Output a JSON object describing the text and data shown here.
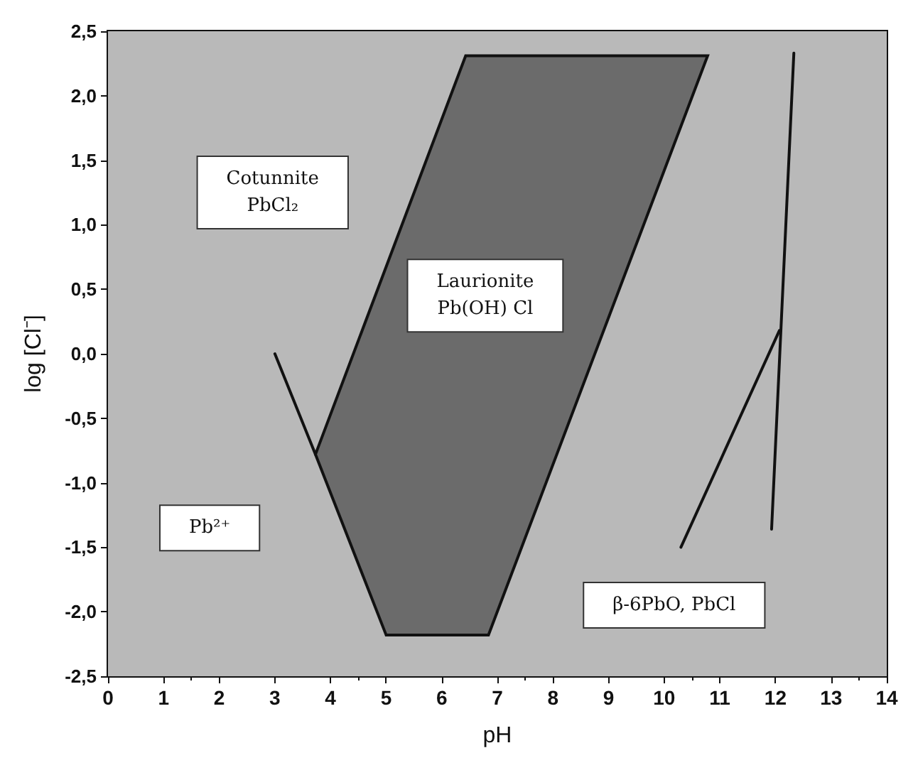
{
  "chart_data": {
    "type": "line",
    "xlabel": "pH",
    "ylabel": "log [Cl⁻]",
    "series": [
      {
        "type": "area",
        "color": "#6b6b6b",
        "x": [
          5.0,
          3.73,
          6.43,
          10.78,
          6.84,
          5.0
        ],
        "values": [
          -2.18,
          -0.78,
          2.31,
          2.31,
          -2.18,
          -2.18
        ]
      },
      {
        "color": "#111111",
        "x": [
          3.0,
          3.73
        ],
        "values": [
          0.0,
          -0.78
        ]
      },
      {
        "color": "#111111",
        "x": [
          10.3,
          12.07
        ],
        "values": [
          -1.5,
          0.18
        ]
      },
      {
        "color": "#111111",
        "x": [
          12.33,
          11.93
        ],
        "values": [
          2.33,
          -1.36
        ]
      }
    ],
    "bands": [
      {
        "axis": "x",
        "from": 0,
        "to": 14,
        "color": "#b9b9b9"
      }
    ],
    "annotations": [
      "Cotunnite\nPbCl₂",
      "Laurionite\nPb(OH) Cl",
      "Pb²⁺",
      "β-6PbO, PbCl"
    ],
    "xlim": [
      0,
      14
    ],
    "xticks": [
      0,
      1,
      2,
      3,
      4,
      5,
      6,
      7,
      8,
      9,
      10,
      11,
      12,
      13,
      14
    ],
    "ylim": [
      -2.5,
      2.5
    ],
    "yticks": [
      {
        "value": -2.5,
        "label": "-2,5"
      },
      {
        "value": -2.0,
        "label": "-2,0"
      },
      {
        "value": -1.5,
        "label": "-1,5"
      },
      {
        "value": -1.0,
        "label": "-1,0"
      },
      {
        "value": -0.5,
        "label": "-0,5"
      },
      {
        "value": 0.0,
        "label": "0,0"
      },
      {
        "value": 0.5,
        "label": "0,5"
      },
      {
        "value": 1.0,
        "label": "1,0"
      },
      {
        "value": 1.5,
        "label": "1,5"
      },
      {
        "value": 2.0,
        "label": "2,0"
      },
      {
        "value": 2.5,
        "label": "2,5"
      }
    ],
    "grid": false,
    "marker": "none",
    "line_style": "solid"
  }
}
